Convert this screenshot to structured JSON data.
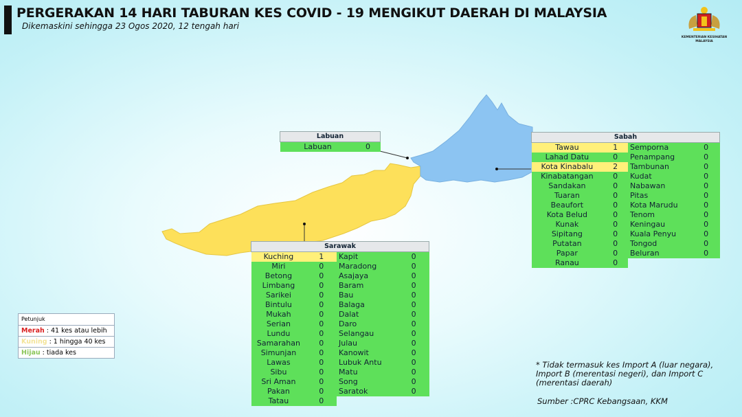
{
  "header": {
    "title": "PERGERAKAN 14 HARI TABURAN KES COVID - 19 MENGIKUT DAERAH DI MALAYSIA",
    "subtitle": "Dikemaskini sehingga 23 Ogos 2020, 12 tengah hari",
    "logo_text": "KEMENTERIAN KESIHATAN MALAYSIA"
  },
  "colors": {
    "red": "#d92020",
    "yellow": "#fff07a",
    "green": "#5ee05a",
    "sarawak_map": "#fde05a",
    "sabah_map": "#8cc4f2"
  },
  "labuan": {
    "title": "Labuan",
    "rows": [
      {
        "name": "Labuan",
        "value": "0",
        "zone": "green"
      }
    ]
  },
  "sabah": {
    "title": "Sabah",
    "left": [
      {
        "name": "Tawau",
        "value": "1",
        "zone": "yellow"
      },
      {
        "name": "Lahad Datu",
        "value": "0",
        "zone": "green"
      },
      {
        "name": "Kota Kinabalu",
        "value": "2",
        "zone": "yellow"
      },
      {
        "name": "Kinabatangan",
        "value": "0",
        "zone": "green"
      },
      {
        "name": "Sandakan",
        "value": "0",
        "zone": "green"
      },
      {
        "name": "Tuaran",
        "value": "0",
        "zone": "green"
      },
      {
        "name": "Beaufort",
        "value": "0",
        "zone": "green"
      },
      {
        "name": "Kota Belud",
        "value": "0",
        "zone": "green"
      },
      {
        "name": "Kunak",
        "value": "0",
        "zone": "green"
      },
      {
        "name": "Sipitang",
        "value": "0",
        "zone": "green"
      },
      {
        "name": "Putatan",
        "value": "0",
        "zone": "green"
      },
      {
        "name": "Papar",
        "value": "0",
        "zone": "green"
      },
      {
        "name": "Ranau",
        "value": "0",
        "zone": "green"
      }
    ],
    "right": [
      {
        "name": "Semporna",
        "value": "0",
        "zone": "green"
      },
      {
        "name": "Penampang",
        "value": "0",
        "zone": "green"
      },
      {
        "name": "Tambunan",
        "value": "0",
        "zone": "green"
      },
      {
        "name": "Kudat",
        "value": "0",
        "zone": "green"
      },
      {
        "name": "Nabawan",
        "value": "0",
        "zone": "green"
      },
      {
        "name": "Pitas",
        "value": "0",
        "zone": "green"
      },
      {
        "name": "Kota Marudu",
        "value": "0",
        "zone": "green"
      },
      {
        "name": "Tenom",
        "value": "0",
        "zone": "green"
      },
      {
        "name": "Keningau",
        "value": "0",
        "zone": "green"
      },
      {
        "name": "Kuala Penyu",
        "value": "0",
        "zone": "green"
      },
      {
        "name": "Tongod",
        "value": "0",
        "zone": "green"
      },
      {
        "name": "Beluran",
        "value": "0",
        "zone": "green"
      }
    ]
  },
  "sarawak": {
    "title": "Sarawak",
    "left": [
      {
        "name": "Kuching",
        "value": "1",
        "zone": "yellow"
      },
      {
        "name": "Miri",
        "value": "0",
        "zone": "green"
      },
      {
        "name": "Betong",
        "value": "0",
        "zone": "green"
      },
      {
        "name": "Limbang",
        "value": "0",
        "zone": "green"
      },
      {
        "name": "Sarikei",
        "value": "0",
        "zone": "green"
      },
      {
        "name": "Bintulu",
        "value": "0",
        "zone": "green"
      },
      {
        "name": "Mukah",
        "value": "0",
        "zone": "green"
      },
      {
        "name": "Serian",
        "value": "0",
        "zone": "green"
      },
      {
        "name": "Lundu",
        "value": "0",
        "zone": "green"
      },
      {
        "name": "Samarahan",
        "value": "0",
        "zone": "green"
      },
      {
        "name": "Simunjan",
        "value": "0",
        "zone": "green"
      },
      {
        "name": "Lawas",
        "value": "0",
        "zone": "green"
      },
      {
        "name": "Sibu",
        "value": "0",
        "zone": "green"
      },
      {
        "name": "Sri Aman",
        "value": "0",
        "zone": "green"
      },
      {
        "name": "Pakan",
        "value": "0",
        "zone": "green"
      },
      {
        "name": "Tatau",
        "value": "0",
        "zone": "green"
      }
    ],
    "right": [
      {
        "name": "Kapit",
        "value": "0",
        "zone": "green"
      },
      {
        "name": "Maradong",
        "value": "0",
        "zone": "green"
      },
      {
        "name": "Asajaya",
        "value": "0",
        "zone": "green"
      },
      {
        "name": "Baram",
        "value": "0",
        "zone": "green"
      },
      {
        "name": "Bau",
        "value": "0",
        "zone": "green"
      },
      {
        "name": "Balaga",
        "value": "0",
        "zone": "green"
      },
      {
        "name": "Dalat",
        "value": "0",
        "zone": "green"
      },
      {
        "name": "Daro",
        "value": "0",
        "zone": "green"
      },
      {
        "name": "Selangau",
        "value": "0",
        "zone": "green"
      },
      {
        "name": "Julau",
        "value": "0",
        "zone": "green"
      },
      {
        "name": "Kanowit",
        "value": "0",
        "zone": "green"
      },
      {
        "name": "Lubuk Antu",
        "value": "0",
        "zone": "green"
      },
      {
        "name": "Matu",
        "value": "0",
        "zone": "green"
      },
      {
        "name": "Song",
        "value": "0",
        "zone": "green"
      },
      {
        "name": "Saratok",
        "value": "0",
        "zone": "green"
      }
    ]
  },
  "legend": {
    "title": "Petunjuk",
    "items": [
      {
        "key": "Merah",
        "text": ": 41 kes atau lebih",
        "color": "#d92020"
      },
      {
        "key": "Kuning",
        "text": ": 1 hingga 40 kes",
        "color": "#f3e49a"
      },
      {
        "key": "Hijau",
        "text": ": tiada kes",
        "color": "#8cc65a"
      }
    ]
  },
  "footer": {
    "note_lines": [
      "* Tidak termasuk kes Import A (luar negara),",
      "Import B (merentasi negeri),  dan Import C",
      "(merentasi daerah)"
    ],
    "source": "Sumber :CPRC Kebangsaan,  KKM"
  }
}
